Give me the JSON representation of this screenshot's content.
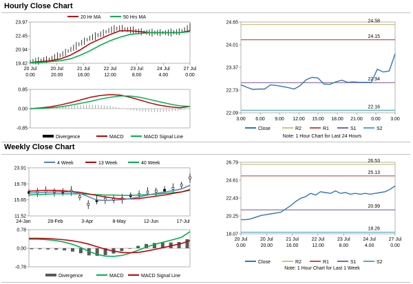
{
  "colors": {
    "price_black": "#000000",
    "ma_red": "#c00000",
    "ma_green": "#00b050",
    "ma_blue": "#4f81bd",
    "macd_red": "#c00000",
    "signal_green": "#00b050",
    "hist_gray": "#a6a6a6",
    "close_blue": "#2e75b6",
    "r2": "#c8c47a",
    "r1": "#c0504d",
    "s1": "#8064a2",
    "s2": "#4bacc6",
    "frame": "#808080"
  },
  "titles": {
    "hourly": "Hourly Close Chart",
    "weekly": "Weekly Close Chart"
  },
  "chart_data": [
    {
      "id": "hourly_price",
      "type": "line",
      "title": "Hourly Close Chart",
      "legend": [
        "20 Hr MA",
        "50 Hrs MA"
      ],
      "y_ticks": [
        "23.97",
        "22.45",
        "20.94",
        "19.42"
      ],
      "ylim": [
        19.42,
        23.97
      ],
      "x_ticks": [
        [
          "20 Jul",
          "0.00"
        ],
        [
          "20 Jul",
          "20.00"
        ],
        [
          "21 Jul",
          "16.00"
        ],
        [
          "22 Jul",
          "12.00"
        ],
        [
          "23 Jul",
          "8.00"
        ],
        [
          "24 Jul",
          "4.00"
        ],
        [
          "27 Jul",
          "0.00"
        ]
      ],
      "series": [
        {
          "name": "Close",
          "values": [
            19.6,
            19.7,
            19.9,
            20.3,
            20.9,
            21.6,
            22.2,
            22.6,
            23.1,
            23.3,
            23.1,
            22.9,
            22.8,
            22.8,
            22.8,
            22.9,
            23.4
          ]
        },
        {
          "name": "20 Hr MA",
          "values": [
            19.5,
            19.6,
            19.7,
            19.9,
            20.3,
            20.9,
            21.6,
            22.1,
            22.6,
            23.0,
            23.0,
            22.9,
            22.8,
            22.8,
            22.8,
            22.8,
            23.0
          ]
        },
        {
          "name": "50 Hrs MA",
          "values": [
            19.5,
            19.5,
            19.6,
            19.7,
            19.9,
            20.3,
            20.8,
            21.4,
            21.9,
            22.3,
            22.6,
            22.7,
            22.8,
            22.8,
            22.8,
            22.8,
            22.9
          ]
        }
      ]
    },
    {
      "id": "hourly_macd",
      "type": "line",
      "legend": [
        "Divergence",
        "MACD",
        "MACD Signal Line"
      ],
      "y_ticks": [
        "0.85",
        "0.00",
        "-0.85"
      ],
      "ylim": [
        -0.85,
        0.85
      ],
      "series": [
        {
          "name": "MACD",
          "values": [
            0.0,
            0.03,
            0.08,
            0.16,
            0.26,
            0.38,
            0.5,
            0.58,
            0.62,
            0.6,
            0.5,
            0.38,
            0.25,
            0.15,
            0.08,
            0.04,
            0.1
          ]
        },
        {
          "name": "MACD Signal Line",
          "values": [
            0.0,
            0.01,
            0.04,
            0.08,
            0.15,
            0.23,
            0.32,
            0.42,
            0.5,
            0.56,
            0.56,
            0.5,
            0.4,
            0.3,
            0.2,
            0.12,
            0.1
          ]
        },
        {
          "name": "Divergence",
          "values": [
            0.0,
            0.02,
            0.04,
            0.08,
            0.11,
            0.15,
            0.18,
            0.16,
            0.12,
            0.04,
            -0.06,
            -0.12,
            -0.15,
            -0.15,
            -0.12,
            -0.08,
            0.0
          ]
        }
      ]
    },
    {
      "id": "hourly_sr",
      "type": "line",
      "note": "Note: 1 Hour Chart for Last 24 Hours",
      "legend": [
        "Close",
        "R2",
        "R1",
        "S1",
        "S2"
      ],
      "y_ticks": [
        "24.65",
        "24.01",
        "23.37",
        "22.73",
        "22.09"
      ],
      "ylim": [
        22.09,
        24.65
      ],
      "x_ticks": [
        "3.00",
        "6.00",
        "9.00",
        "12.00",
        "15.00",
        "18.00",
        "21.00",
        "0.00",
        "3.00"
      ],
      "levels": {
        "R2": "24.58",
        "R1": "24.15",
        "S1": "22.94",
        "S2": "22.16"
      },
      "level_values": {
        "R2": 24.58,
        "R1": 24.15,
        "S1": 22.94,
        "S2": 22.16
      },
      "series": [
        {
          "name": "Close",
          "values": [
            22.88,
            22.81,
            22.75,
            22.76,
            22.76,
            22.88,
            22.86,
            22.83,
            22.8,
            22.76,
            22.86,
            23.02,
            23.09,
            23.07,
            22.9,
            22.89,
            22.96,
            23.01,
            22.95,
            22.96,
            22.95,
            22.95,
            22.95,
            23.32,
            23.24,
            23.27,
            23.75
          ]
        }
      ]
    },
    {
      "id": "weekly_price",
      "type": "line",
      "title": "Weekly Close Chart",
      "legend": [
        "4 Week",
        "13 Week",
        "40 Week"
      ],
      "y_ticks": [
        "23.91",
        "19.78",
        "15.65",
        "11.52"
      ],
      "ylim": [
        11.52,
        23.91
      ],
      "x_ticks": [
        "24-Jan",
        "28-Feb",
        "3-Apr",
        "8-May",
        "12-Jun",
        "17-Jul"
      ],
      "series": [
        {
          "name": "Close",
          "values": [
            17.5,
            17.6,
            17.8,
            17.7,
            17.6,
            17.9,
            16.4,
            14.5,
            15.4,
            15.8,
            15.7,
            15.9,
            16.7,
            17.0,
            17.6,
            17.9,
            18.1,
            18.6,
            19.4,
            21.3
          ]
        },
        {
          "name": "4 Week",
          "values": [
            17.4,
            17.5,
            17.6,
            17.7,
            17.7,
            17.7,
            17.3,
            16.5,
            15.6,
            15.5,
            15.6,
            15.7,
            16.0,
            16.4,
            16.9,
            17.3,
            17.7,
            18.0,
            18.5,
            19.4
          ]
        },
        {
          "name": "13 Week",
          "values": [
            17.9,
            18.0,
            18.1,
            18.1,
            18.0,
            17.8,
            17.6,
            17.2,
            16.8,
            16.4,
            16.1,
            15.9,
            15.9,
            16.0,
            16.3,
            16.6,
            16.9,
            17.3,
            17.7,
            18.3
          ]
        },
        {
          "name": "40 Week",
          "values": [
            16.9,
            17.0,
            17.1,
            17.2,
            17.2,
            17.2,
            17.2,
            17.1,
            17.0,
            16.9,
            16.9,
            16.8,
            16.8,
            16.9,
            17.0,
            17.1,
            17.3,
            17.5,
            17.7,
            18.1
          ]
        }
      ]
    },
    {
      "id": "weekly_macd",
      "type": "line",
      "legend": [
        "Divergence",
        "MACD",
        "MACD Signal Line"
      ],
      "y_ticks": [
        "0.78",
        "0.00",
        "-0.78"
      ],
      "ylim": [
        -0.78,
        0.78
      ],
      "series": [
        {
          "name": "MACD",
          "values": [
            0.38,
            0.38,
            0.36,
            0.33,
            0.27,
            0.18,
            0.05,
            -0.12,
            -0.25,
            -0.33,
            -0.34,
            -0.3,
            -0.2,
            -0.07,
            0.07,
            0.18,
            0.27,
            0.36,
            0.46,
            0.7
          ]
        },
        {
          "name": "MACD Signal Line",
          "values": [
            0.42,
            0.42,
            0.41,
            0.39,
            0.36,
            0.32,
            0.26,
            0.18,
            0.07,
            -0.04,
            -0.12,
            -0.18,
            -0.19,
            -0.17,
            -0.11,
            -0.04,
            0.04,
            0.12,
            0.2,
            0.32
          ]
        },
        {
          "name": "Divergence",
          "values": [
            -0.04,
            -0.04,
            -0.05,
            -0.06,
            -0.09,
            -0.14,
            -0.21,
            -0.3,
            -0.32,
            -0.29,
            -0.22,
            -0.12,
            -0.01,
            0.1,
            0.18,
            0.22,
            0.23,
            0.24,
            0.26,
            0.38
          ]
        }
      ]
    },
    {
      "id": "weekly_sr",
      "type": "line",
      "note": "Note: 1 Hour Chart for Last 1 Week",
      "legend": [
        "Close",
        "R2",
        "R1",
        "S1",
        "S2"
      ],
      "y_ticks": [
        "26.79",
        "24.61",
        "22.43",
        "20.25",
        "18.07"
      ],
      "ylim": [
        18.07,
        26.79
      ],
      "x_ticks": [
        [
          "20 Jul",
          "0.00"
        ],
        [
          "20 Jul",
          "20.00"
        ],
        [
          "21 Jul",
          "16.00"
        ],
        [
          "22 Jul",
          "12.00"
        ],
        [
          "23 Jul",
          "8.00"
        ],
        [
          "24 Jul",
          "4.00"
        ],
        [
          "27 Jul",
          "0.00"
        ]
      ],
      "levels": {
        "R2": "26.53",
        "R1": "25.13",
        "S1": "20.99",
        "S2": "18.26"
      },
      "level_values": {
        "R2": 26.53,
        "R1": 25.13,
        "S1": 20.99,
        "S2": 18.26
      },
      "series": [
        {
          "name": "Close",
          "values": [
            19.8,
            19.8,
            19.9,
            20.1,
            20.3,
            20.4,
            20.5,
            20.6,
            20.7,
            21.1,
            21.5,
            22.0,
            22.4,
            22.6,
            23.0,
            22.8,
            23.2,
            23.1,
            23.0,
            23.3,
            23.0,
            23.1,
            22.9,
            23.0,
            22.9,
            23.0,
            22.9,
            23.0,
            23.1,
            23.2,
            23.5,
            23.9
          ]
        }
      ]
    }
  ]
}
